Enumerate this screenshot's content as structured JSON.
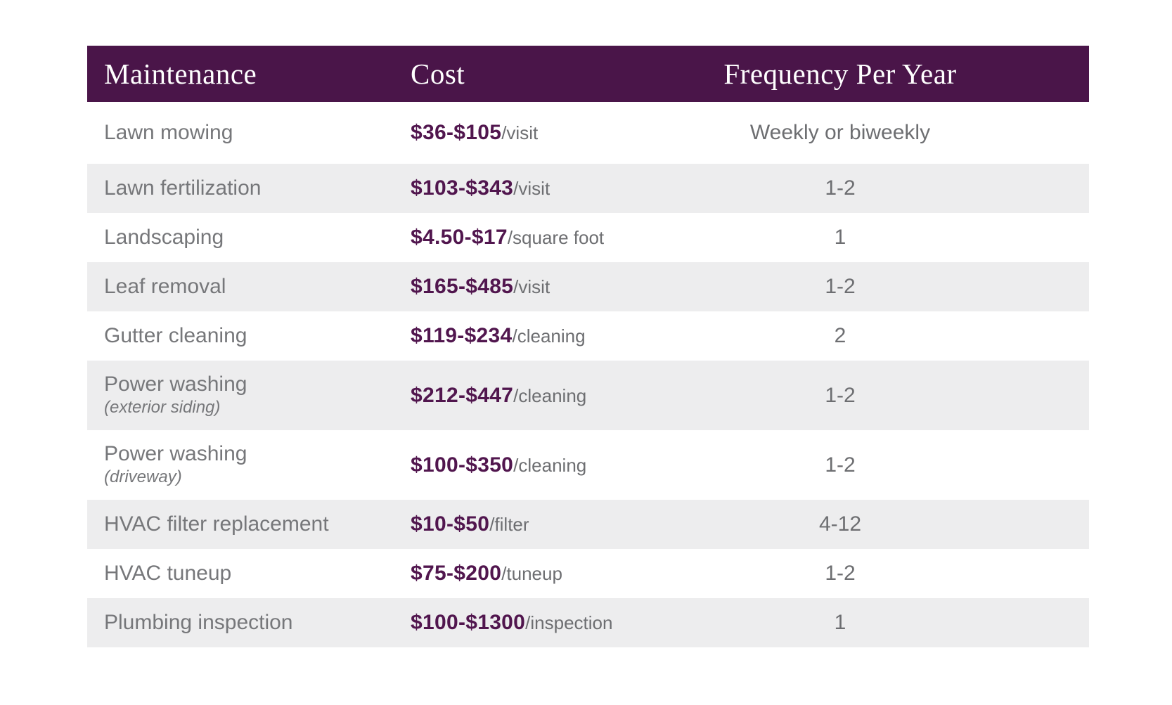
{
  "style": {
    "page_bg": "#ffffff",
    "header_bg": "#4a1549",
    "header_text": "#ffffff",
    "price_color": "#51164e",
    "label_color": "#76777a",
    "muted_color": "#6d6e71",
    "alt_row_bg": "#ededee"
  },
  "chart_data": {
    "type": "table",
    "columns": [
      "Maintenance",
      "Cost",
      "Frequency Per Year"
    ],
    "rows": [
      {
        "maintenance": "Lawn mowing",
        "subtitle": "",
        "cost_value": "$36-$105",
        "cost_unit": "/visit",
        "frequency": "Weekly or biweekly",
        "shaded": false
      },
      {
        "maintenance": "Lawn fertilization",
        "subtitle": "",
        "cost_value": "$103-$343",
        "cost_unit": "/visit",
        "frequency": "1-2",
        "shaded": true
      },
      {
        "maintenance": "Landscaping",
        "subtitle": "",
        "cost_value": "$4.50-$17",
        "cost_unit": "/square foot",
        "frequency": "1",
        "shaded": false
      },
      {
        "maintenance": "Leaf removal",
        "subtitle": "",
        "cost_value": "$165-$485",
        "cost_unit": "/visit",
        "frequency": "1-2",
        "shaded": true
      },
      {
        "maintenance": "Gutter cleaning",
        "subtitle": "",
        "cost_value": "$119-$234",
        "cost_unit": "/cleaning",
        "frequency": "2",
        "shaded": false
      },
      {
        "maintenance": "Power washing",
        "subtitle": "(exterior siding)",
        "cost_value": "$212-$447",
        "cost_unit": "/cleaning",
        "frequency": "1-2",
        "shaded": true
      },
      {
        "maintenance": "Power washing",
        "subtitle": "(driveway)",
        "cost_value": "$100-$350",
        "cost_unit": "/cleaning",
        "frequency": "1-2",
        "shaded": false
      },
      {
        "maintenance": "HVAC filter replacement",
        "subtitle": "",
        "cost_value": "$10-$50",
        "cost_unit": "/filter",
        "frequency": "4-12",
        "shaded": true
      },
      {
        "maintenance": "HVAC tuneup",
        "subtitle": "",
        "cost_value": "$75-$200",
        "cost_unit": "/tuneup",
        "frequency": "1-2",
        "shaded": false
      },
      {
        "maintenance": "Plumbing inspection",
        "subtitle": "",
        "cost_value": "$100-$1300",
        "cost_unit": "/inspection",
        "frequency": "1",
        "shaded": true
      }
    ]
  }
}
